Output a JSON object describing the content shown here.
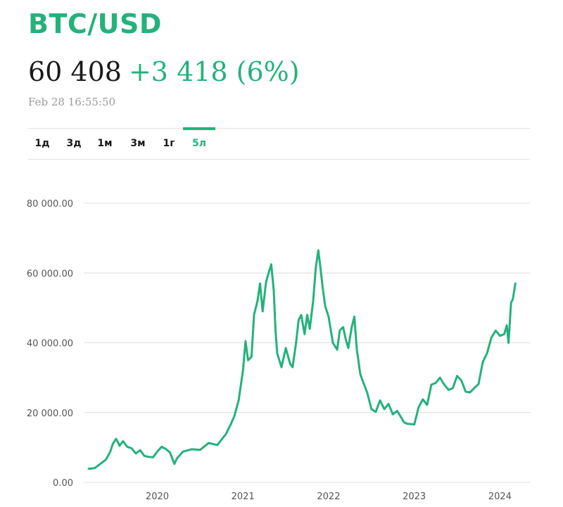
{
  "header": {
    "pair": "BTC/USD",
    "price": "60 408",
    "change": "+3 418 (6%)",
    "timestamp": "Feb 28 16:55:50"
  },
  "tabs": [
    {
      "label": "1д",
      "active": false
    },
    {
      "label": "3д",
      "active": false
    },
    {
      "label": "1м",
      "active": false
    },
    {
      "label": "3м",
      "active": false
    },
    {
      "label": "1г",
      "active": false
    },
    {
      "label": "5л",
      "active": true
    }
  ],
  "colors": {
    "accent": "#23b27a",
    "grid": "#dcdcdc",
    "axis_text": "#555555"
  },
  "chart_data": {
    "type": "line",
    "title": "",
    "xlabel": "",
    "ylabel": "",
    "ylim": [
      0,
      80000
    ],
    "y_ticks": [
      {
        "value": 80000,
        "label": "80 000.00"
      },
      {
        "value": 60000,
        "label": "60 000.00"
      },
      {
        "value": 40000,
        "label": "40 000.00"
      },
      {
        "value": 20000,
        "label": "20 000.00"
      },
      {
        "value": 0,
        "label": "0.00"
      }
    ],
    "x_ticks": [
      {
        "value": 2020.0,
        "label": "2020"
      },
      {
        "value": 2021.0,
        "label": "2021"
      },
      {
        "value": 2022.0,
        "label": "2022"
      },
      {
        "value": 2023.0,
        "label": "2023"
      },
      {
        "value": 2024.0,
        "label": "2024"
      }
    ],
    "xlim": [
      2019.15,
      2024.35
    ],
    "grid": true,
    "series": [
      {
        "color": "#23b27a",
        "x": [
          2019.2,
          2019.27,
          2019.33,
          2019.4,
          2019.45,
          2019.48,
          2019.52,
          2019.56,
          2019.6,
          2019.65,
          2019.7,
          2019.75,
          2019.8,
          2019.85,
          2019.9,
          2019.95,
          2020.0,
          2020.05,
          2020.1,
          2020.15,
          2020.2,
          2020.23,
          2020.3,
          2020.4,
          2020.5,
          2020.6,
          2020.7,
          2020.8,
          2020.85,
          2020.9,
          2020.95,
          2021.0,
          2021.03,
          2021.06,
          2021.1,
          2021.13,
          2021.17,
          2021.2,
          2021.23,
          2021.27,
          2021.3,
          2021.33,
          2021.36,
          2021.38,
          2021.4,
          2021.45,
          2021.5,
          2021.55,
          2021.58,
          2021.62,
          2021.65,
          2021.68,
          2021.72,
          2021.75,
          2021.78,
          2021.82,
          2021.85,
          2021.88,
          2021.9,
          2021.93,
          2021.96,
          2022.0,
          2022.05,
          2022.1,
          2022.13,
          2022.17,
          2022.2,
          2022.23,
          2022.27,
          2022.3,
          2022.33,
          2022.37,
          2022.4,
          2022.43,
          2022.45,
          2022.5,
          2022.55,
          2022.6,
          2022.65,
          2022.7,
          2022.75,
          2022.8,
          2022.85,
          2022.88,
          2022.92,
          2022.96,
          2023.0,
          2023.05,
          2023.1,
          2023.15,
          2023.2,
          2023.25,
          2023.3,
          2023.35,
          2023.4,
          2023.45,
          2023.5,
          2023.55,
          2023.6,
          2023.65,
          2023.7,
          2023.75,
          2023.8,
          2023.85,
          2023.9,
          2023.95,
          2024.0,
          2024.05,
          2024.08,
          2024.1,
          2024.13,
          2024.15,
          2024.18
        ],
        "y": [
          3900,
          4100,
          5200,
          6500,
          8700,
          11000,
          12500,
          10500,
          11800,
          10200,
          9800,
          8300,
          9200,
          7600,
          7300,
          7200,
          8800,
          10200,
          9600,
          8500,
          5300,
          6900,
          8800,
          9500,
          9300,
          11300,
          10700,
          13800,
          16200,
          19000,
          23500,
          32000,
          40500,
          35000,
          36000,
          48000,
          52000,
          57000,
          49000,
          57500,
          60000,
          62500,
          55000,
          43500,
          37000,
          33000,
          38500,
          34000,
          33000,
          40000,
          46500,
          48000,
          42500,
          48000,
          44000,
          52000,
          61500,
          66500,
          62500,
          56000,
          50500,
          47500,
          40000,
          38000,
          43500,
          44500,
          41000,
          38500,
          44500,
          47500,
          38000,
          31000,
          29000,
          27000,
          25800,
          21000,
          20200,
          23500,
          21000,
          22500,
          19500,
          20500,
          18500,
          17200,
          16800,
          16700,
          16600,
          21500,
          23800,
          22200,
          28000,
          28500,
          30000,
          28000,
          26500,
          27000,
          30500,
          29200,
          26000,
          25800,
          27000,
          28200,
          34500,
          37000,
          41500,
          43500,
          42000,
          42500,
          45000,
          40000,
          51500,
          52500,
          57000
        ]
      }
    ]
  }
}
